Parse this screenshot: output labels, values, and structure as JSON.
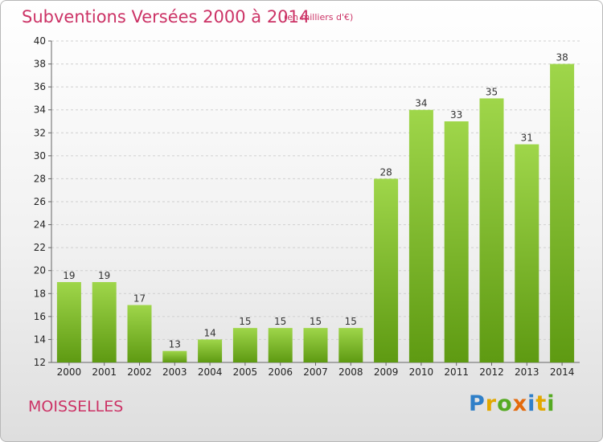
{
  "header": {
    "title": "Subventions Versées 2000 à 2014",
    "subtitle": "(en milliers d'€)"
  },
  "footer": {
    "place": "MOISSELLES",
    "logo": "Proxiti"
  },
  "colors": {
    "title": "#cc3366",
    "bar_light": "#9fd64a",
    "bar_dark": "#5e9a12"
  },
  "chart_data": {
    "type": "bar",
    "categories": [
      "2000",
      "2001",
      "2002",
      "2003",
      "2004",
      "2005",
      "2006",
      "2007",
      "2008",
      "2009",
      "2010",
      "2011",
      "2012",
      "2013",
      "2014"
    ],
    "values": [
      19,
      19,
      17,
      13,
      14,
      15,
      15,
      15,
      15,
      28,
      34,
      33,
      35,
      31,
      38
    ],
    "title": "Subventions Versées 2000 à 2014",
    "subtitle": "(en milliers d'€)",
    "xlabel": "",
    "ylabel": "",
    "ylim": [
      12,
      40
    ],
    "yticks": [
      12,
      14,
      16,
      18,
      20,
      22,
      24,
      26,
      28,
      30,
      32,
      34,
      36,
      38,
      40
    ],
    "grid": "horizontal dashed",
    "data_labels": true
  }
}
